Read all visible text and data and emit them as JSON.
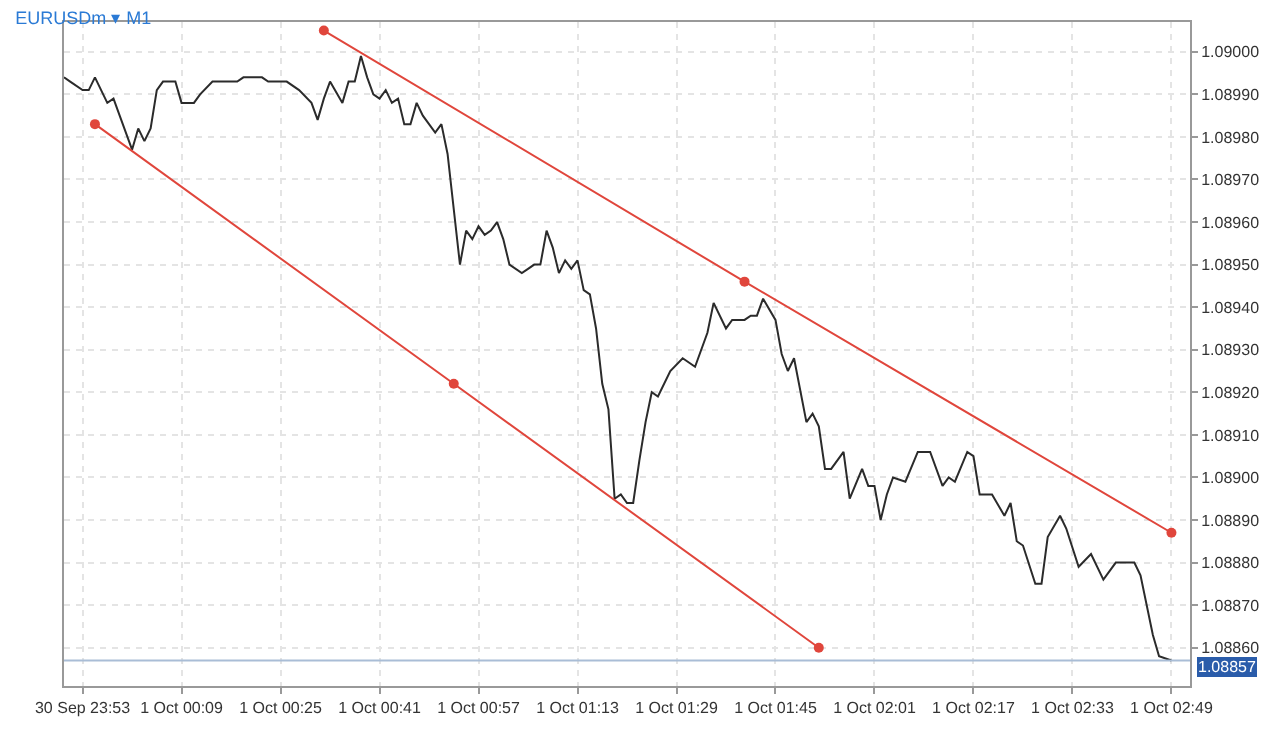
{
  "chart_data": {
    "type": "line",
    "title": "EURUSDm ▾ M1",
    "xlim": [
      "--09-30T23:50",
      "--10-01T02:52"
    ],
    "ylim": [
      1.08851,
      1.09007
    ],
    "xticks": [
      {
        "value": "--09-30T23:53",
        "label": "30 Sep 23:53"
      },
      {
        "value": "--10-01T00:09",
        "label": "1 Oct 00:09"
      },
      {
        "value": "--10-01T00:25",
        "label": "1 Oct 00:25"
      },
      {
        "value": "--10-01T00:41",
        "label": "1 Oct 00:41"
      },
      {
        "value": "--10-01T00:57",
        "label": "1 Oct 00:57"
      },
      {
        "value": "--10-01T01:13",
        "label": "1 Oct 01:13"
      },
      {
        "value": "--10-01T01:29",
        "label": "1 Oct 01:29"
      },
      {
        "value": "--10-01T01:45",
        "label": "1 Oct 01:45"
      },
      {
        "value": "--10-01T02:01",
        "label": "1 Oct 02:01"
      },
      {
        "value": "--10-01T02:17",
        "label": "1 Oct 02:17"
      },
      {
        "value": "--10-01T02:33",
        "label": "1 Oct 02:33"
      },
      {
        "value": "--10-01T02:49",
        "label": "1 Oct 02:49"
      }
    ],
    "yticks": [
      {
        "value": 1.0886,
        "label": "1.08860"
      },
      {
        "value": 1.0887,
        "label": "1.08870"
      },
      {
        "value": 1.0888,
        "label": "1.08880"
      },
      {
        "value": 1.0889,
        "label": "1.08890"
      },
      {
        "value": 1.089,
        "label": "1.08900"
      },
      {
        "value": 1.0891,
        "label": "1.08910"
      },
      {
        "value": 1.0892,
        "label": "1.08920"
      },
      {
        "value": 1.0893,
        "label": "1.08930"
      },
      {
        "value": 1.0894,
        "label": "1.08940"
      },
      {
        "value": 1.0895,
        "label": "1.08950"
      },
      {
        "value": 1.0896,
        "label": "1.08960"
      },
      {
        "value": 1.0897,
        "label": "1.08970"
      },
      {
        "value": 1.0898,
        "label": "1.08980"
      },
      {
        "value": 1.0899,
        "label": "1.08990"
      },
      {
        "value": 1.09,
        "label": "1.09000"
      }
    ],
    "grid": true,
    "marker": "none",
    "line_style": "solid",
    "ref_lines": [
      {
        "axis": "y",
        "value": 1.08857,
        "label": "1.08857",
        "color": "#a9bdd6"
      }
    ],
    "series": [
      {
        "color": "#2b2b2b",
        "x": [
          "--09-30T23:50",
          "--09-30T23:51",
          "--09-30T23:53",
          "--09-30T23:54",
          "--09-30T23:55",
          "--09-30T23:56",
          "--09-30T23:57",
          "--09-30T23:58",
          "--09-30T23:59",
          "--10-01T00:01",
          "--10-01T00:02",
          "--10-01T00:03",
          "--10-01T00:04",
          "--10-01T00:05",
          "--10-01T00:06",
          "--10-01T00:08",
          "--10-01T00:09",
          "--10-01T00:11",
          "--10-01T00:12",
          "--10-01T00:14",
          "--10-01T00:18",
          "--10-01T00:19",
          "--10-01T00:22",
          "--10-01T00:23",
          "--10-01T00:26",
          "--10-01T00:28",
          "--10-01T00:30",
          "--10-01T00:31",
          "--10-01T00:32",
          "--10-01T00:33",
          "--10-01T00:35",
          "--10-01T00:36",
          "--10-01T00:37",
          "--10-01T00:38",
          "--10-01T00:39",
          "--10-01T00:40",
          "--10-01T00:41",
          "--10-01T00:42",
          "--10-01T00:43",
          "--10-01T00:44",
          "--10-01T00:45",
          "--10-01T00:46",
          "--10-01T00:47",
          "--10-01T00:48",
          "--10-01T00:50",
          "--10-01T00:51",
          "--10-01T00:52",
          "--10-01T00:54",
          "--10-01T00:55",
          "--10-01T00:56",
          "--10-01T00:57",
          "--10-01T00:58",
          "--10-01T00:59",
          "--10-01T01:00",
          "--10-01T01:01",
          "--10-01T01:02",
          "--10-01T01:04",
          "--10-01T01:05",
          "--10-01T01:06",
          "--10-01T01:07",
          "--10-01T01:08",
          "--10-01T01:09",
          "--10-01T01:10",
          "--10-01T01:11",
          "--10-01T01:12",
          "--10-01T01:13",
          "--10-01T01:14",
          "--10-01T01:15",
          "--10-01T01:16",
          "--10-01T01:17",
          "--10-01T01:18",
          "--10-01T01:19",
          "--10-01T01:20",
          "--10-01T01:21",
          "--10-01T01:22",
          "--10-01T01:23",
          "--10-01T01:24",
          "--10-01T01:25",
          "--10-01T01:26",
          "--10-01T01:28",
          "--10-01T01:30",
          "--10-01T01:32",
          "--10-01T01:34",
          "--10-01T01:35",
          "--10-01T01:37",
          "--10-01T01:38",
          "--10-01T01:40",
          "--10-01T01:41",
          "--10-01T01:42",
          "--10-01T01:43",
          "--10-01T01:45",
          "--10-01T01:46",
          "--10-01T01:47",
          "--10-01T01:48",
          "--10-01T01:50",
          "--10-01T01:51",
          "--10-01T01:52",
          "--10-01T01:53",
          "--10-01T01:54",
          "--10-01T01:56",
          "--10-01T01:57",
          "--10-01T01:59",
          "--10-01T02:00",
          "--10-01T02:01",
          "--10-01T02:02",
          "--10-01T02:03",
          "--10-01T02:04",
          "--10-01T02:06",
          "--10-01T02:08",
          "--10-01T02:10",
          "--10-01T02:12",
          "--10-01T02:13",
          "--10-01T02:14",
          "--10-01T02:16",
          "--10-01T02:17",
          "--10-01T02:18",
          "--10-01T02:20",
          "--10-01T02:22",
          "--10-01T02:23",
          "--10-01T02:24",
          "--10-01T02:25",
          "--10-01T02:27",
          "--10-01T02:28",
          "--10-01T02:29",
          "--10-01T02:31",
          "--10-01T02:32",
          "--10-01T02:34",
          "--10-01T02:36",
          "--10-01T02:38",
          "--10-01T02:40",
          "--10-01T02:43",
          "--10-01T02:44",
          "--10-01T02:46",
          "--10-01T02:47",
          "--10-01T02:49"
        ],
        "values": [
          1.08994,
          1.08993,
          1.08991,
          1.08991,
          1.08994,
          1.08991,
          1.08988,
          1.08989,
          1.08985,
          1.08977,
          1.08982,
          1.08979,
          1.08982,
          1.08991,
          1.08993,
          1.08993,
          1.08988,
          1.08988,
          1.0899,
          1.08993,
          1.08993,
          1.08994,
          1.08994,
          1.08993,
          1.08993,
          1.08991,
          1.08988,
          1.08984,
          1.08989,
          1.08993,
          1.08988,
          1.08993,
          1.08993,
          1.08999,
          1.08994,
          1.0899,
          1.08989,
          1.08991,
          1.08988,
          1.08989,
          1.08983,
          1.08983,
          1.08988,
          1.08985,
          1.08981,
          1.08983,
          1.08976,
          1.0895,
          1.08958,
          1.08956,
          1.08959,
          1.08957,
          1.08958,
          1.0896,
          1.08956,
          1.0895,
          1.08948,
          1.08949,
          1.0895,
          1.0895,
          1.08958,
          1.08954,
          1.08948,
          1.08951,
          1.08949,
          1.08951,
          1.08944,
          1.08943,
          1.08935,
          1.08922,
          1.08916,
          1.08895,
          1.08896,
          1.08894,
          1.08894,
          1.08904,
          1.08913,
          1.0892,
          1.08919,
          1.08925,
          1.08928,
          1.08926,
          1.08934,
          1.08941,
          1.08935,
          1.08937,
          1.08937,
          1.08938,
          1.08938,
          1.08942,
          1.08937,
          1.08929,
          1.08925,
          1.08928,
          1.08913,
          1.08915,
          1.08912,
          1.08902,
          1.08902,
          1.08906,
          1.08895,
          1.08902,
          1.08898,
          1.08898,
          1.0889,
          1.08896,
          1.089,
          1.08899,
          1.08906,
          1.08906,
          1.08898,
          1.089,
          1.08899,
          1.08906,
          1.08905,
          1.08896,
          1.08896,
          1.08891,
          1.08894,
          1.08885,
          1.08884,
          1.08875,
          1.08875,
          1.08886,
          1.08891,
          1.08888,
          1.08879,
          1.08882,
          1.08876,
          1.0888,
          1.0888,
          1.08877,
          1.08863,
          1.08858,
          1.08857
        ]
      },
      {
        "color": "#e0463c",
        "marker": "circle",
        "x": [
          "--10-01T00:32",
          "--10-01T01:40",
          "--10-01T02:49"
        ],
        "values": [
          1.09005,
          1.08946,
          1.08887
        ]
      },
      {
        "color": "#e0463c",
        "marker": "circle",
        "x": [
          "--09-30T23:55",
          "--10-01T00:53",
          "--10-01T01:52"
        ],
        "values": [
          1.08983,
          1.08922,
          1.0886
        ]
      }
    ]
  }
}
